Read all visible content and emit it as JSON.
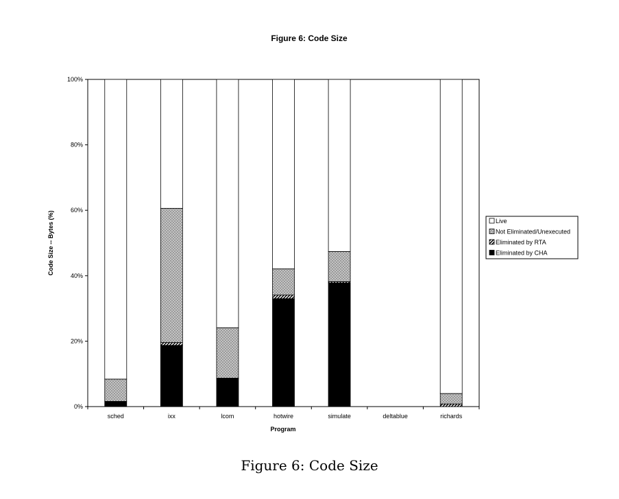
{
  "chart_data": {
    "type": "bar",
    "stacked": true,
    "title": "Figure 6: Code Size",
    "xlabel": "Program",
    "ylabel": "Code Size -- Bytes (%)",
    "ylim": [
      0,
      100
    ],
    "yticks": [
      "0%",
      "20%",
      "40%",
      "60%",
      "80%",
      "100%"
    ],
    "categories": [
      "sched",
      "ixx",
      "lcom",
      "hotwire",
      "simulate",
      "deltablue",
      "richards"
    ],
    "series": [
      {
        "name": "Eliminated by CHA",
        "values": [
          1.6,
          18.7,
          8.7,
          33.0,
          37.8,
          0,
          0
        ],
        "color": "#000000"
      },
      {
        "name": "Eliminated by RTA",
        "values": [
          0,
          0.9,
          0,
          1.1,
          0.4,
          0,
          0.8
        ],
        "color": "hatched"
      },
      {
        "name": "Not Eliminated/Unexecuted",
        "values": [
          6.8,
          41.0,
          15.4,
          8.0,
          9.2,
          0,
          3.2
        ],
        "color": "#b8b8b8"
      },
      {
        "name": "Live",
        "values": [
          91.6,
          39.4,
          75.9,
          57.9,
          52.6,
          0,
          96.0
        ],
        "color": "#ffffff"
      }
    ],
    "legend": {
      "position": "right",
      "order": [
        "Live",
        "Not Eliminated/Unexecuted",
        "Eliminated by RTA",
        "Eliminated by CHA"
      ]
    },
    "grid": false
  },
  "caption": "Figure 6: Code Size"
}
